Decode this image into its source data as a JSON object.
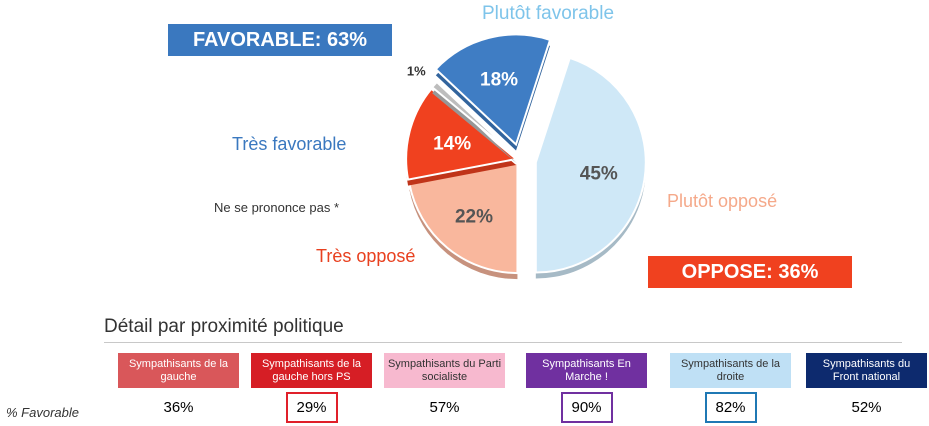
{
  "chart_data": {
    "type": "pie",
    "slices": [
      {
        "name": "Plutôt favorable",
        "value": 45,
        "label": "45%",
        "color": "#cfe8f7",
        "text_color": "#555555",
        "exploded": true
      },
      {
        "name": "Plutôt opposé",
        "value": 22,
        "label": "22%",
        "color": "#f9b79d",
        "text_color": "#555555",
        "exploded": false
      },
      {
        "name": "Très opposé",
        "value": 14,
        "label": "14%",
        "color": "#f0411f",
        "text_color": "#ffffff",
        "exploded": false
      },
      {
        "name": "Ne se prononce pas *",
        "value": 1,
        "label": "1%",
        "color": "#bdbdbd",
        "text_color": "#333333",
        "exploded": false
      },
      {
        "name": "Très favorable",
        "value": 18,
        "label": "18%",
        "color": "#3f7dc4",
        "text_color": "#ffffff",
        "exploded": true
      }
    ],
    "category_labels": {
      "plutot_favorable": "Plutôt favorable",
      "plutot_oppose": "Plutôt opposé",
      "tres_oppose": "Très opposé",
      "tres_favorable": "Très favorable",
      "nspp": "Ne se prononce pas *"
    },
    "label_colors": {
      "plutot_favorable": "#7ec4ea",
      "plutot_oppose": "#f5a98a",
      "tres_oppose": "#e8401f",
      "tres_favorable": "#3a78bf"
    },
    "favorable_total": "FAVORABLE: 63%",
    "oppose_total": "OPPOSE: 36%"
  },
  "detail": {
    "title": "Détail par proximité politique",
    "row_label": "% Favorable",
    "groups": [
      {
        "name": "Sympathisants de la gauche",
        "value": "36%",
        "bg": "#d9575a",
        "fg": "#ffffff",
        "border": ""
      },
      {
        "name": "Sympathisants de la gauche hors PS",
        "value": "29%",
        "bg": "#d61e25",
        "fg": "#ffffff",
        "border": "#e0202a"
      },
      {
        "name": "Sympathisants du Parti socialiste",
        "value": "57%",
        "bg": "#f7b9cf",
        "fg": "#333333",
        "border": ""
      },
      {
        "name": "Sympathisants En Marche !",
        "value": "90%",
        "bg": "#7030a0",
        "fg": "#ffffff",
        "border": "#7030a0"
      },
      {
        "name": "Sympathisants de la droite",
        "value": "82%",
        "bg": "#bfe0f5",
        "fg": "#333333",
        "border": "#1f78b4"
      },
      {
        "name": "Sympathisants du Front national",
        "value": "52%",
        "bg": "#0d2a6e",
        "fg": "#ffffff",
        "border": ""
      }
    ]
  }
}
